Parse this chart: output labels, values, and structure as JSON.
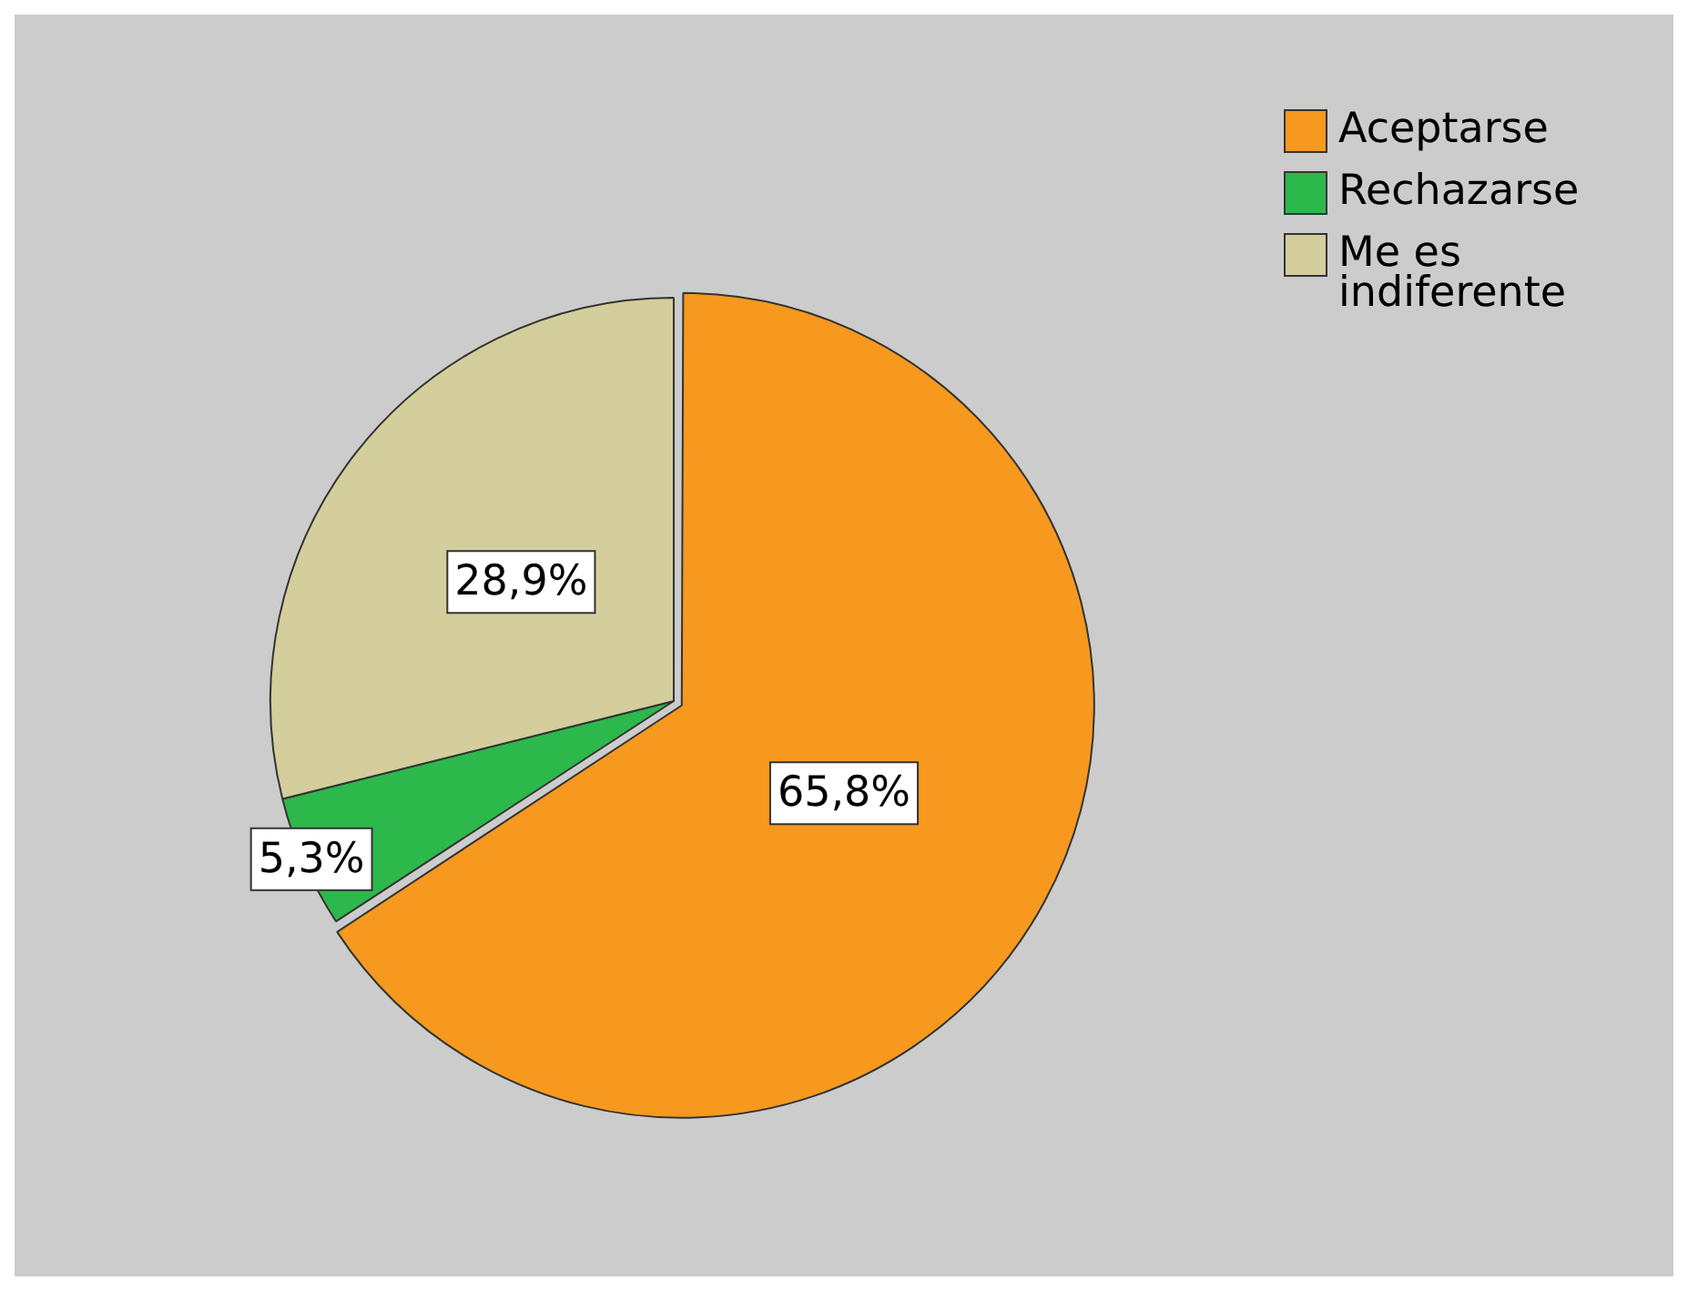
{
  "chart_data": {
    "type": "pie",
    "categories": [
      "Aceptarse",
      "Rechazarse",
      "Me es indiferente"
    ],
    "values": [
      65.8,
      5.3,
      28.9
    ],
    "colors": [
      "#f7991e",
      "#2db84b",
      "#d4ce9c"
    ],
    "value_labels": [
      "65,8%",
      "5,3%",
      "28,9%"
    ],
    "legend": "top right"
  }
}
